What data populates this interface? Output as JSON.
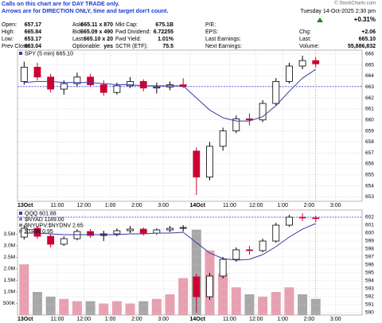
{
  "header": {
    "note": [
      "Calls on this chart are for DAY TRADE only.",
      "Arrows are for DIRECTION ONLY, time and target don't count."
    ],
    "fields": [
      {
        "label": "Open:",
        "value": "657.17"
      },
      {
        "label": "High:",
        "value": "665.84"
      },
      {
        "label": "Low:",
        "value": "653.17"
      },
      {
        "label": "Prev Close:",
        "value": "663.04"
      },
      {
        "label": "Ask:",
        "value": "665.11 x 870"
      },
      {
        "label": "Bid:",
        "value": "665.09 x 490"
      },
      {
        "label": "Last:",
        "value": "665.10 x 20"
      },
      {
        "label": "Optionable:",
        "value": "yes"
      },
      {
        "label": "Mkt Cap:",
        "value": "675.1B"
      },
      {
        "label": "Fwd Dividend:",
        "value": "6.72255"
      },
      {
        "label": "Fwd Yield:",
        "value": "1.01%"
      },
      {
        "label": "SCTR (ETF):",
        "value": "75.5"
      },
      {
        "label": "P/E:"
      },
      {
        "label": "EPS:"
      },
      {
        "label": "Last Earnings:"
      },
      {
        "label": "Next Earnings:"
      }
    ],
    "date": "Tuesday 14-Oct-2025 2:30 pm",
    "change_pct": "+0.31%",
    "right_fields": [
      {
        "label": "Chg:",
        "value": "+2.06"
      },
      {
        "label": "Last:",
        "value": "665.10"
      },
      {
        "label": "Volume:",
        "value": "55,886,832"
      }
    ],
    "logo": "© StockCharts.com"
  },
  "chart_data": [
    {
      "type": "candlestick",
      "legend": [
        "SPY (5 min) 665.10"
      ],
      "up_color": "#000000",
      "down_color": "#cc0033",
      "x": [
        0.25,
        0.75,
        1.25,
        1.75,
        2.25,
        2.75,
        3.25,
        3.75,
        4.25,
        4.75,
        5.25,
        5.75,
        6.25,
        6.75,
        7.25,
        7.75,
        8.25,
        8.75,
        9.25,
        9.75,
        10.25,
        10.75,
        11.25
      ],
      "open": [
        663.5,
        664.8,
        663.9,
        662.8,
        663.3,
        663.9,
        663.2,
        662.5,
        663.1,
        663.5,
        662.9,
        663.0,
        663.2,
        657.17,
        654.8,
        657.6,
        659.0,
        660.1,
        660.0,
        661.5,
        663.5,
        664.9,
        665.4
      ],
      "high": [
        665.3,
        665.2,
        664.2,
        663.6,
        664.3,
        664.2,
        663.6,
        663.4,
        663.9,
        663.7,
        663.4,
        663.5,
        663.8,
        657.5,
        658.0,
        659.3,
        660.4,
        660.6,
        661.8,
        663.8,
        665.2,
        665.84,
        665.7
      ],
      "low": [
        663.2,
        663.6,
        662.5,
        662.3,
        663.0,
        663.0,
        662.2,
        662.3,
        662.9,
        662.6,
        662.4,
        662.7,
        662.9,
        653.17,
        654.5,
        657.2,
        658.8,
        659.5,
        659.8,
        661.3,
        663.3,
        664.6,
        664.8
      ],
      "close": [
        664.8,
        663.9,
        662.8,
        663.3,
        663.9,
        663.2,
        662.5,
        663.1,
        663.5,
        662.9,
        663.0,
        663.2,
        663.04,
        654.8,
        657.6,
        659.0,
        660.1,
        660.0,
        661.5,
        663.5,
        664.9,
        665.4,
        665.1
      ],
      "overlay": {
        "color": "#3a3aa8",
        "values": [
          663.4,
          663.5,
          663.5,
          663.4,
          663.4,
          663.4,
          663.3,
          663.2,
          663.2,
          663.1,
          663.1,
          663.1,
          663.1,
          662.0,
          660.9,
          660.2,
          659.9,
          659.9,
          660.3,
          661.3,
          662.6,
          663.8,
          664.6
        ]
      },
      "reference_line": 663.04,
      "xlim": [
        0,
        13
      ],
      "xticks": [
        {
          "value": 0,
          "label": "13Oct"
        },
        {
          "value": 1.5,
          "label": "11:00"
        },
        {
          "value": 2.5,
          "label": "12:00"
        },
        {
          "value": 3.5,
          "label": "1:00"
        },
        {
          "value": 4.5,
          "label": "2:00"
        },
        {
          "value": 5.5,
          "label": "3:00"
        },
        {
          "value": 6.5,
          "label": "14Oct"
        },
        {
          "value": 8,
          "label": "11:00"
        },
        {
          "value": 9,
          "label": "12:00"
        },
        {
          "value": 10,
          "label": "1:00"
        },
        {
          "value": 11,
          "label": "2:00"
        },
        {
          "value": 12,
          "label": "3:00"
        }
      ],
      "ylim": [
        652.6,
        666.35
      ],
      "yticks": [
        653,
        654,
        655,
        656,
        657,
        658,
        659,
        660,
        661,
        662,
        663,
        664,
        665,
        666
      ],
      "grid": true
    },
    {
      "type": "candlestick",
      "legend": [
        "QQQ 601.88",
        "$NYAD 1189.00",
        "$NYUPV:$NYDNV 2.65",
        "$TRIN 0.95"
      ],
      "up_color": "#000000",
      "down_color": "#cc0033",
      "x": [
        0.25,
        0.75,
        1.25,
        1.75,
        2.25,
        2.75,
        3.25,
        3.75,
        4.25,
        4.75,
        5.25,
        5.75,
        6.25,
        6.75,
        7.25,
        7.75,
        8.25,
        8.75,
        9.25,
        9.75,
        10.25,
        10.75,
        11.25
      ],
      "open": [
        599.5,
        600.6,
        599.6,
        598.6,
        599.3,
        600.2,
        599.7,
        599.9,
        600.3,
        600.5,
        600.0,
        600.4,
        600.6,
        594.5,
        592.0,
        594.6,
        596.7,
        597.9,
        597.8,
        599.0,
        601.0,
        602.0,
        601.9
      ],
      "high": [
        601.0,
        600.9,
        599.9,
        599.6,
        600.5,
        600.5,
        600.3,
        600.6,
        600.9,
        600.7,
        600.6,
        600.9,
        601.0,
        594.9,
        595.0,
        597.0,
        598.2,
        598.4,
        599.3,
        601.3,
        602.3,
        602.5,
        602.2
      ],
      "low": [
        599.2,
        599.3,
        598.2,
        598.4,
        599.1,
        599.4,
        599.0,
        599.6,
        600.0,
        599.7,
        599.8,
        600.1,
        600.2,
        590.0,
        591.6,
        594.3,
        596.4,
        597.3,
        597.6,
        598.8,
        600.8,
        601.5,
        601.4
      ],
      "close": [
        600.6,
        599.6,
        598.6,
        599.3,
        600.2,
        599.7,
        599.9,
        600.3,
        600.5,
        600.0,
        600.4,
        600.6,
        600.7,
        592.0,
        594.6,
        596.7,
        597.9,
        597.8,
        599.0,
        601.0,
        602.0,
        601.9,
        601.88
      ],
      "overlay": {
        "color": "#3a3aa8",
        "values": [
          600.0,
          600.0,
          599.9,
          599.8,
          599.8,
          599.8,
          599.8,
          599.8,
          599.9,
          599.9,
          600.0,
          600.0,
          600.1,
          598.8,
          597.5,
          596.8,
          596.6,
          596.7,
          597.3,
          598.3,
          599.5,
          600.5,
          601.2
        ]
      },
      "reference_line": 602.0,
      "volume": {
        "up_color": "#e8a0b0",
        "down_color": "#a8a8a8",
        "values": [
          2200000,
          1000000,
          800000,
          700000,
          600000,
          600000,
          500000,
          600000,
          500000,
          600000,
          700000,
          900000,
          1600000,
          3700000,
          2800000,
          1800000,
          1200000,
          900000,
          800000,
          1000000,
          1200000,
          900000,
          700000
        ],
        "ylim": [
          0,
          4550000
        ],
        "yticks": [
          {
            "value": 500000,
            "label": "500K"
          },
          {
            "value": 1000000,
            "label": "1.0M"
          },
          {
            "value": 1500000,
            "label": "1.5M"
          },
          {
            "value": 2000000,
            "label": "2.0M"
          },
          {
            "value": 2500000,
            "label": "2.5M"
          },
          {
            "value": 3000000,
            "label": "3.0M"
          },
          {
            "value": 3500000,
            "label": "3.5M"
          }
        ]
      },
      "xlim": [
        0,
        13
      ],
      "xticks": [
        {
          "value": 0,
          "label": "13Oct"
        },
        {
          "value": 1.5,
          "label": "11:00"
        },
        {
          "value": 2.5,
          "label": "12:00"
        },
        {
          "value": 3.5,
          "label": "1:00"
        },
        {
          "value": 4.5,
          "label": "2:00"
        },
        {
          "value": 5.5,
          "label": "3:00"
        },
        {
          "value": 6.5,
          "label": "14Oct"
        },
        {
          "value": 8,
          "label": "11:00"
        },
        {
          "value": 9,
          "label": "12:00"
        },
        {
          "value": 10,
          "label": "1:00"
        },
        {
          "value": 11,
          "label": "2:00"
        },
        {
          "value": 12,
          "label": "3:00"
        }
      ],
      "ylim": [
        589.7,
        602.9
      ],
      "yticks": [
        590,
        591,
        592,
        593,
        594,
        595,
        596,
        597,
        598,
        599,
        600,
        601,
        602
      ],
      "grid": true
    }
  ]
}
